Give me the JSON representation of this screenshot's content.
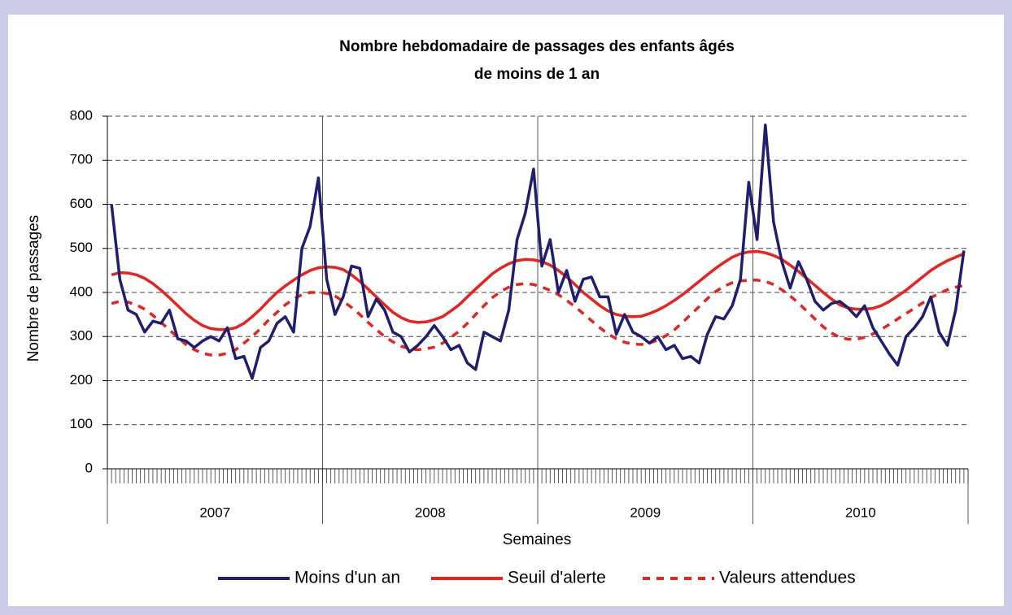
{
  "chart_data": {
    "type": "line",
    "title": "Nombre hebdomadaire de passages des enfants âgés",
    "subtitle": "de moins de 1 an",
    "y_label": "Nombre de passages",
    "x_label": "Semaines",
    "year_labels": [
      "2007",
      "2008",
      "2009",
      "2010"
    ],
    "ylim": [
      0,
      800
    ],
    "yticks": [
      0,
      100,
      200,
      300,
      400,
      500,
      600,
      700,
      800
    ],
    "grid": true,
    "series": [
      {
        "name": "Moins d'un an",
        "color": "#1f1f6e",
        "dashed": false,
        "values": [
          600,
          430,
          360,
          350,
          310,
          335,
          330,
          360,
          295,
          290,
          275,
          290,
          300,
          290,
          320,
          250,
          255,
          205,
          275,
          290,
          330,
          345,
          310,
          500,
          550,
          660,
          430,
          350,
          390,
          460,
          455,
          345,
          385,
          360,
          310,
          300,
          265,
          280,
          300,
          325,
          300,
          270,
          280,
          240,
          225,
          310,
          300,
          290,
          360,
          520,
          580,
          680,
          460,
          520,
          400,
          450,
          380,
          430,
          435,
          390,
          390,
          305,
          350,
          310,
          300,
          285,
          300,
          270,
          280,
          250,
          255,
          240,
          305,
          345,
          340,
          370,
          430,
          650,
          520,
          780,
          560,
          470,
          410,
          470,
          430,
          380,
          360,
          375,
          380,
          365,
          345,
          370,
          320,
          290,
          260,
          235,
          300,
          320,
          345,
          390,
          310,
          280,
          360,
          495
        ]
      },
      {
        "name": "Seuil d'alerte",
        "color": "#e8231f",
        "dashed": false,
        "values": [
          440,
          445,
          444,
          440,
          432,
          420,
          405,
          388,
          370,
          352,
          337,
          325,
          318,
          316,
          316,
          320,
          330,
          345,
          362,
          382,
          400,
          415,
          428,
          440,
          450,
          456,
          458,
          457,
          452,
          440,
          425,
          408,
          390,
          372,
          355,
          343,
          335,
          332,
          333,
          338,
          345,
          358,
          372,
          390,
          408,
          425,
          442,
          455,
          465,
          472,
          475,
          474,
          470,
          462,
          450,
          435,
          418,
          400,
          385,
          370,
          358,
          350,
          346,
          345,
          346,
          352,
          360,
          370,
          382,
          395,
          410,
          425,
          440,
          455,
          468,
          480,
          488,
          492,
          493,
          490,
          484,
          475,
          462,
          448,
          432,
          416,
          400,
          385,
          372,
          365,
          362,
          362,
          364,
          370,
          380,
          392,
          405,
          420,
          435,
          450,
          462,
          472,
          480,
          488
        ]
      },
      {
        "name": "Valeurs attendues",
        "color": "#e8231f",
        "dashed": true,
        "values": [
          375,
          380,
          378,
          372,
          362,
          348,
          332,
          315,
          298,
          282,
          270,
          262,
          258,
          258,
          262,
          270,
          285,
          300,
          318,
          338,
          355,
          372,
          385,
          395,
          400,
          400,
          398,
          392,
          380,
          366,
          350,
          332,
          316,
          300,
          288,
          278,
          272,
          270,
          272,
          276,
          285,
          298,
          312,
          330,
          350,
          370,
          388,
          402,
          412,
          418,
          420,
          418,
          412,
          405,
          395,
          382,
          368,
          352,
          336,
          320,
          306,
          295,
          287,
          283,
          282,
          285,
          292,
          302,
          315,
          332,
          350,
          368,
          386,
          402,
          414,
          422,
          426,
          428,
          428,
          425,
          418,
          406,
          392,
          376,
          358,
          340,
          322,
          308,
          298,
          294,
          294,
          298,
          306,
          316,
          328,
          340,
          352,
          364,
          376,
          388,
          398,
          406,
          412,
          416
        ]
      }
    ]
  }
}
